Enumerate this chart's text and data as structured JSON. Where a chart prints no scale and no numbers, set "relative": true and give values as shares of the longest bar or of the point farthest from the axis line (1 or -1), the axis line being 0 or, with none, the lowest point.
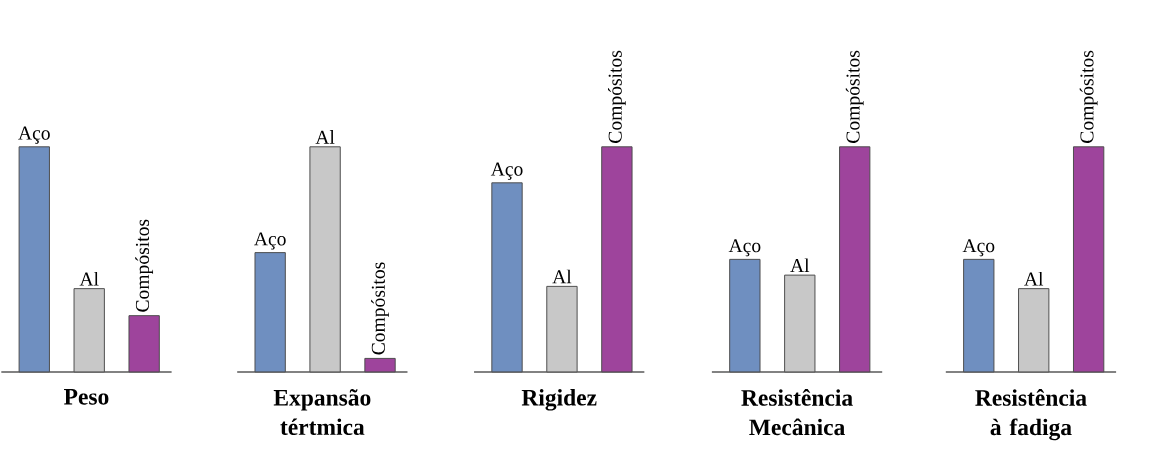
{
  "chart_data": [
    {
      "type": "bar",
      "title": "Peso",
      "relative": true,
      "categories": [
        "Aço",
        "Al",
        "Compósitos"
      ],
      "values": [
        1,
        0.37,
        0.25
      ],
      "colors": [
        "#6f8fc0",
        "#c8c8c8",
        "#9e449c"
      ]
    },
    {
      "type": "bar",
      "title": "Expansão tértmica",
      "relative": true,
      "categories": [
        "Aço",
        "Al",
        "Compósitos"
      ],
      "values": [
        0.53,
        1,
        0.06
      ],
      "colors": [
        "#6f8fc0",
        "#c8c8c8",
        "#9e449c"
      ]
    },
    {
      "type": "bar",
      "title": "Rigidez",
      "relative": true,
      "categories": [
        "Aço",
        "Al",
        "Compósitos"
      ],
      "values": [
        0.84,
        0.38,
        1
      ],
      "colors": [
        "#6f8fc0",
        "#c8c8c8",
        "#9e449c"
      ]
    },
    {
      "type": "bar",
      "title": "Resistência Mecânica",
      "relative": true,
      "categories": [
        "Aço",
        "Al",
        "Compósitos"
      ],
      "values": [
        0.5,
        0.43,
        1
      ],
      "colors": [
        "#6f8fc0",
        "#c8c8c8",
        "#9e449c"
      ]
    },
    {
      "type": "bar",
      "title": "Resistência à fadiga",
      "relative": true,
      "categories": [
        "Aço",
        "Al",
        "Compósitos"
      ],
      "values": [
        0.5,
        0.37,
        1
      ],
      "colors": [
        "#6f8fc0",
        "#c8c8c8",
        "#9e449c"
      ]
    }
  ]
}
